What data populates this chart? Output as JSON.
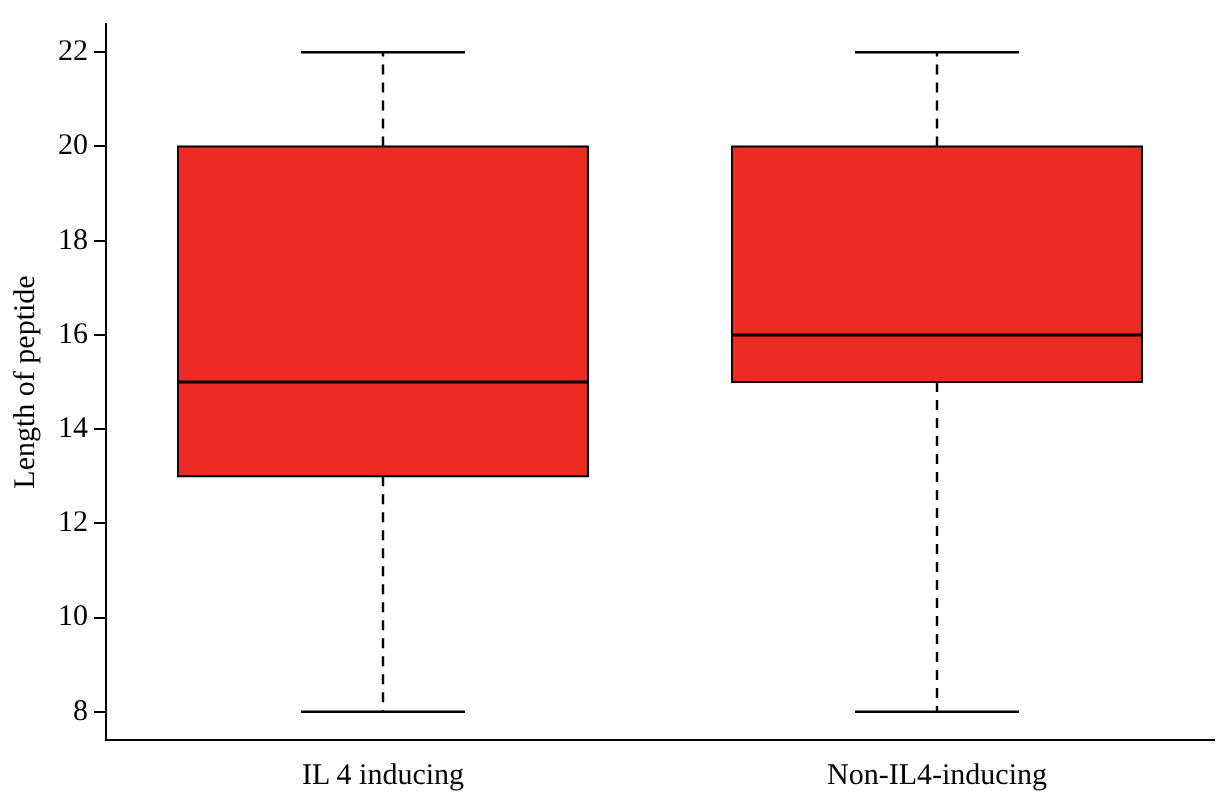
{
  "chart_data": {
    "type": "box",
    "ylabel": "Length of peptide",
    "categories": [
      "IL 4 inducing",
      "Non-IL4-inducing"
    ],
    "boxes": [
      {
        "low": 8,
        "q1": 13,
        "median": 15,
        "q3": 20,
        "high": 22
      },
      {
        "low": 8,
        "q1": 15,
        "median": 16,
        "q3": 20,
        "high": 22
      }
    ],
    "color": "#ee2a24",
    "ylim": [
      7.4,
      22.6
    ],
    "yticks": [
      8,
      10,
      12,
      14,
      16,
      18,
      20,
      22
    ],
    "grid": false,
    "legend": false
  }
}
